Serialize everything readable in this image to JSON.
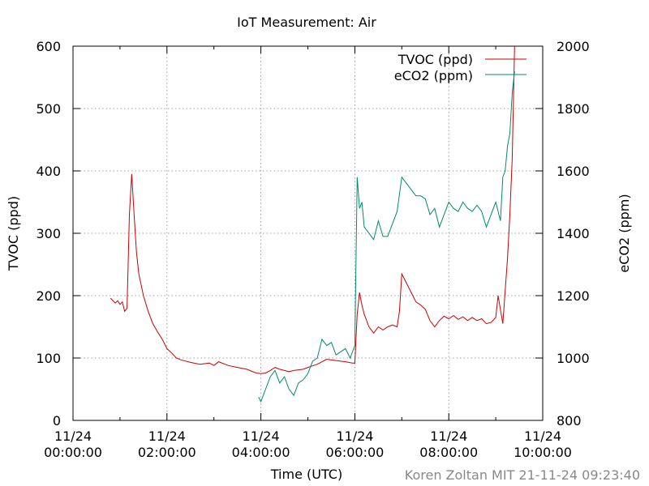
{
  "chart_data": {
    "type": "line",
    "title": "IoT Measurement: Air",
    "xlabel": "Time (UTC)",
    "ylabel_left": "TVOC (ppd)",
    "ylabel_right": "eCO2 (ppm)",
    "credit": "Koren Zoltan MIT 21-11-24 09:23:40",
    "xlim": [
      0,
      10
    ],
    "x_unit": "hours UTC on 11/24",
    "ylim_left": [
      0,
      600
    ],
    "ylim_right": [
      800,
      2000
    ],
    "grid": true,
    "legend_position": "top-right",
    "x_ticks": [
      {
        "v": 0,
        "line1": "11/24",
        "line2": "00:00:00"
      },
      {
        "v": 2,
        "line1": "11/24",
        "line2": "02:00:00"
      },
      {
        "v": 4,
        "line1": "11/24",
        "line2": "04:00:00"
      },
      {
        "v": 6,
        "line1": "11/24",
        "line2": "06:00:00"
      },
      {
        "v": 8,
        "line1": "11/24",
        "line2": "08:00:00"
      },
      {
        "v": 10,
        "line1": "11/24",
        "line2": "10:00:00"
      }
    ],
    "y_ticks_left": [
      "0",
      "100",
      "200",
      "300",
      "400",
      "500",
      "600"
    ],
    "y_ticks_right": [
      "800",
      "1000",
      "1200",
      "1400",
      "1600",
      "1800",
      "2000"
    ],
    "series": [
      {
        "name": "TVOC (ppd)",
        "axis": "left",
        "color": "#cc0000",
        "points": [
          [
            0.8,
            196
          ],
          [
            0.9,
            188
          ],
          [
            0.95,
            192
          ],
          [
            1.0,
            186
          ],
          [
            1.05,
            190
          ],
          [
            1.1,
            175
          ],
          [
            1.15,
            180
          ],
          [
            1.2,
            330
          ],
          [
            1.25,
            395
          ],
          [
            1.3,
            330
          ],
          [
            1.35,
            270
          ],
          [
            1.4,
            235
          ],
          [
            1.5,
            200
          ],
          [
            1.6,
            175
          ],
          [
            1.7,
            155
          ],
          [
            1.8,
            142
          ],
          [
            1.9,
            130
          ],
          [
            2.0,
            115
          ],
          [
            2.1,
            108
          ],
          [
            2.2,
            100
          ],
          [
            2.3,
            97
          ],
          [
            2.5,
            93
          ],
          [
            2.7,
            90
          ],
          [
            2.9,
            92
          ],
          [
            3.0,
            88
          ],
          [
            3.1,
            94
          ],
          [
            3.3,
            88
          ],
          [
            3.5,
            85
          ],
          [
            3.7,
            82
          ],
          [
            3.9,
            76
          ],
          [
            4.0,
            75
          ],
          [
            4.1,
            76
          ],
          [
            4.2,
            80
          ],
          [
            4.3,
            85
          ],
          [
            4.4,
            82
          ],
          [
            4.5,
            80
          ],
          [
            4.6,
            78
          ],
          [
            4.7,
            80
          ],
          [
            4.9,
            82
          ],
          [
            5.0,
            85
          ],
          [
            5.2,
            90
          ],
          [
            5.4,
            98
          ],
          [
            5.6,
            96
          ],
          [
            5.8,
            94
          ],
          [
            5.95,
            92
          ],
          [
            6.0,
            92
          ],
          [
            6.05,
            170
          ],
          [
            6.1,
            205
          ],
          [
            6.15,
            185
          ],
          [
            6.2,
            170
          ],
          [
            6.3,
            150
          ],
          [
            6.4,
            140
          ],
          [
            6.5,
            150
          ],
          [
            6.6,
            145
          ],
          [
            6.7,
            150
          ],
          [
            6.8,
            153
          ],
          [
            6.9,
            150
          ],
          [
            6.95,
            175
          ],
          [
            7.0,
            235
          ],
          [
            7.1,
            220
          ],
          [
            7.2,
            205
          ],
          [
            7.3,
            190
          ],
          [
            7.4,
            185
          ],
          [
            7.5,
            178
          ],
          [
            7.6,
            160
          ],
          [
            7.7,
            150
          ],
          [
            7.8,
            160
          ],
          [
            7.9,
            167
          ],
          [
            8.0,
            163
          ],
          [
            8.1,
            168
          ],
          [
            8.2,
            162
          ],
          [
            8.3,
            166
          ],
          [
            8.4,
            160
          ],
          [
            8.5,
            165
          ],
          [
            8.6,
            160
          ],
          [
            8.7,
            163
          ],
          [
            8.8,
            155
          ],
          [
            8.9,
            157
          ],
          [
            9.0,
            165
          ],
          [
            9.05,
            200
          ],
          [
            9.15,
            155
          ],
          [
            9.25,
            260
          ],
          [
            9.3,
            330
          ],
          [
            9.35,
            420
          ],
          [
            9.4,
            600
          ]
        ]
      },
      {
        "name": "eCO2 (ppm)",
        "axis": "right",
        "color": "#008b6b",
        "points": [
          [
            3.95,
            875
          ],
          [
            4.0,
            860
          ],
          [
            4.05,
            880
          ],
          [
            4.1,
            900
          ],
          [
            4.2,
            940
          ],
          [
            4.3,
            960
          ],
          [
            4.4,
            920
          ],
          [
            4.5,
            940
          ],
          [
            4.6,
            900
          ],
          [
            4.7,
            880
          ],
          [
            4.8,
            920
          ],
          [
            4.9,
            930
          ],
          [
            5.0,
            950
          ],
          [
            5.1,
            990
          ],
          [
            5.2,
            1000
          ],
          [
            5.3,
            1060
          ],
          [
            5.4,
            1040
          ],
          [
            5.5,
            1050
          ],
          [
            5.6,
            1010
          ],
          [
            5.7,
            1020
          ],
          [
            5.8,
            1030
          ],
          [
            5.9,
            1000
          ],
          [
            5.95,
            1020
          ],
          [
            6.0,
            1040
          ],
          [
            6.05,
            1580
          ],
          [
            6.1,
            1480
          ],
          [
            6.15,
            1500
          ],
          [
            6.2,
            1420
          ],
          [
            6.3,
            1400
          ],
          [
            6.4,
            1380
          ],
          [
            6.5,
            1440
          ],
          [
            6.6,
            1390
          ],
          [
            6.7,
            1390
          ],
          [
            6.8,
            1430
          ],
          [
            6.9,
            1470
          ],
          [
            7.0,
            1580
          ],
          [
            7.1,
            1560
          ],
          [
            7.2,
            1540
          ],
          [
            7.3,
            1520
          ],
          [
            7.4,
            1520
          ],
          [
            7.5,
            1510
          ],
          [
            7.6,
            1460
          ],
          [
            7.7,
            1480
          ],
          [
            7.8,
            1420
          ],
          [
            7.9,
            1460
          ],
          [
            8.0,
            1500
          ],
          [
            8.1,
            1480
          ],
          [
            8.2,
            1470
          ],
          [
            8.3,
            1500
          ],
          [
            8.4,
            1480
          ],
          [
            8.5,
            1470
          ],
          [
            8.6,
            1490
          ],
          [
            8.7,
            1470
          ],
          [
            8.8,
            1420
          ],
          [
            8.9,
            1460
          ],
          [
            9.0,
            1500
          ],
          [
            9.1,
            1440
          ],
          [
            9.15,
            1580
          ],
          [
            9.2,
            1600
          ],
          [
            9.25,
            1680
          ],
          [
            9.3,
            1720
          ],
          [
            9.35,
            1850
          ],
          [
            9.4,
            1920
          ]
        ]
      }
    ]
  }
}
